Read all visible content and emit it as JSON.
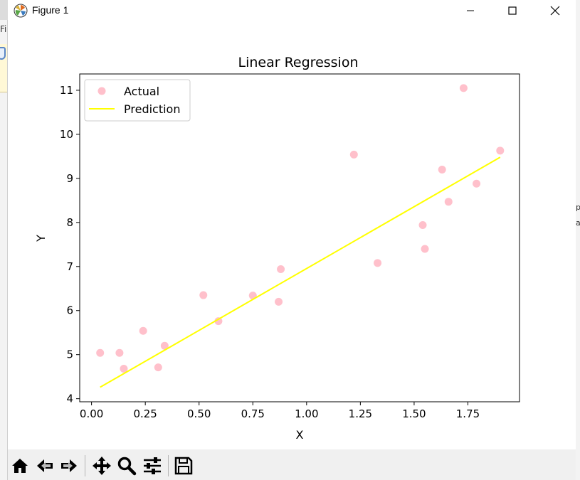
{
  "window": {
    "title": "Figure 1",
    "buttons": [
      "minimize",
      "maximize",
      "close"
    ]
  },
  "background": {
    "left_text": "Fi",
    "right_text_1": "p",
    "right_text_2": "a"
  },
  "toolbar": {
    "tools": [
      "home-icon",
      "back-icon",
      "forward-icon",
      "pan-icon",
      "zoom-icon",
      "configure-subplots-icon",
      "save-icon"
    ]
  },
  "chart_data": {
    "type": "scatter",
    "title": "Linear Regression",
    "xlabel": "X",
    "ylabel": "Y",
    "xlim": [
      -0.055,
      1.99
    ],
    "ylim": [
      3.93,
      11.37
    ],
    "xticks": [
      0.0,
      0.25,
      0.5,
      0.75,
      1.0,
      1.25,
      1.5,
      1.75
    ],
    "xtick_labels": [
      "0.00",
      "0.25",
      "0.50",
      "0.75",
      "1.00",
      "1.25",
      "1.50",
      "1.75"
    ],
    "yticks": [
      4,
      5,
      6,
      7,
      8,
      9,
      10,
      11
    ],
    "ytick_labels": [
      "4",
      "5",
      "6",
      "7",
      "8",
      "9",
      "10",
      "11"
    ],
    "legend_position": "top-left",
    "grid": false,
    "series": [
      {
        "name": "Actual",
        "kind": "scatter",
        "color": "#ffc0cb",
        "x": [
          0.04,
          0.13,
          0.15,
          0.24,
          0.31,
          0.34,
          0.52,
          0.59,
          0.75,
          0.87,
          0.88,
          1.22,
          1.33,
          1.54,
          1.55,
          1.63,
          1.66,
          1.73,
          1.79,
          1.9
        ],
        "y": [
          5.04,
          5.04,
          4.68,
          5.54,
          4.71,
          5.2,
          6.35,
          5.76,
          6.34,
          6.2,
          6.94,
          9.54,
          7.08,
          7.94,
          7.4,
          9.2,
          8.47,
          11.05,
          8.88,
          9.63
        ]
      },
      {
        "name": "Prediction",
        "kind": "line",
        "color": "#ffff00",
        "x": [
          0.04,
          1.9
        ],
        "y": [
          4.26,
          9.48
        ]
      }
    ]
  }
}
